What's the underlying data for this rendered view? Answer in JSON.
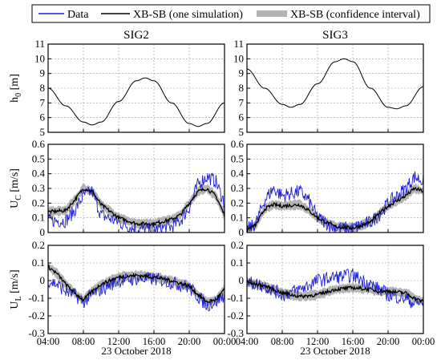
{
  "legend": {
    "entries": [
      {
        "label": "Data",
        "color": "#1f1fd6",
        "style": "line"
      },
      {
        "label": "XB-SB (one simulation)",
        "color": "#000000",
        "style": "line"
      },
      {
        "label": "XB-SB (confidence interval)",
        "color": "#b3b3b3",
        "style": "band"
      }
    ]
  },
  "columns": [
    "SIG2",
    "SIG3"
  ],
  "xaxis": {
    "ticks": [
      "04:00",
      "08:00",
      "12:00",
      "16:00",
      "20:00",
      "00:00"
    ],
    "label": "23 October 2018",
    "range_hours": [
      4,
      24
    ]
  },
  "chart_data": [
    {
      "type": "line",
      "panel": "h0-SIG2",
      "ylabel": "h0 [m]",
      "ylim": [
        5,
        11
      ],
      "yticks": [
        "5",
        "6",
        "7",
        "8",
        "9",
        "10",
        "11"
      ],
      "series": [
        {
          "name": "XB-SB (one simulation)",
          "x": [
            "04:00",
            "06:00",
            "08:00",
            "09:00",
            "10:00",
            "12:00",
            "14:00",
            "15:00",
            "16:00",
            "18:00",
            "20:00",
            "21:00",
            "22:00",
            "00:00"
          ],
          "values": [
            8.0,
            6.8,
            5.7,
            5.5,
            5.7,
            7.1,
            8.5,
            8.7,
            8.5,
            7.0,
            5.6,
            5.4,
            5.6,
            7.0
          ]
        }
      ]
    },
    {
      "type": "line",
      "panel": "h0-SIG3",
      "ylabel": "",
      "ylim": [
        5,
        11
      ],
      "yticks": [
        "5",
        "6",
        "7",
        "8",
        "9",
        "10",
        "11"
      ],
      "series": [
        {
          "name": "XB-SB (one simulation)",
          "x": [
            "04:00",
            "06:00",
            "08:00",
            "09:00",
            "10:00",
            "12:00",
            "14:00",
            "15:00",
            "16:00",
            "18:00",
            "20:00",
            "21:00",
            "22:00",
            "00:00"
          ],
          "values": [
            9.3,
            8.0,
            6.9,
            6.7,
            6.9,
            8.3,
            9.8,
            10.0,
            9.8,
            8.0,
            6.7,
            6.6,
            6.8,
            8.1
          ]
        }
      ]
    },
    {
      "type": "line",
      "panel": "Uc-SIG2",
      "ylabel": "UC [m/s]",
      "ylim": [
        0,
        0.6
      ],
      "yticks": [
        "0",
        "0.1",
        "0.2",
        "0.3",
        "0.4",
        "0.5",
        "0.6"
      ],
      "series": [
        {
          "name": "Data",
          "x": [
            "04:00",
            "06:00",
            "07:00",
            "08:00",
            "09:00",
            "10:00",
            "12:00",
            "14:00",
            "16:00",
            "18:00",
            "19:00",
            "20:00",
            "21:00",
            "22:00",
            "23:00",
            "00:00"
          ],
          "values": [
            0.08,
            0.08,
            0.15,
            0.25,
            0.28,
            0.12,
            0.07,
            0.02,
            0.02,
            0.04,
            0.08,
            0.17,
            0.33,
            0.38,
            0.35,
            0.2
          ]
        },
        {
          "name": "XB-SB (one simulation)",
          "x": [
            "04:00",
            "06:00",
            "07:00",
            "08:00",
            "09:00",
            "10:00",
            "12:00",
            "14:00",
            "16:00",
            "18:00",
            "19:00",
            "20:00",
            "21:00",
            "22:00",
            "23:00",
            "00:00"
          ],
          "values": [
            0.14,
            0.15,
            0.22,
            0.3,
            0.28,
            0.19,
            0.1,
            0.06,
            0.06,
            0.09,
            0.12,
            0.2,
            0.28,
            0.3,
            0.25,
            0.12
          ]
        },
        {
          "name": "XB-SB (confidence interval)",
          "x": [
            "04:00",
            "06:00",
            "07:00",
            "08:00",
            "09:00",
            "10:00",
            "12:00",
            "14:00",
            "16:00",
            "18:00",
            "19:00",
            "20:00",
            "21:00",
            "22:00",
            "23:00",
            "00:00"
          ],
          "values": [
            0.14,
            0.15,
            0.22,
            0.3,
            0.28,
            0.19,
            0.1,
            0.06,
            0.06,
            0.09,
            0.12,
            0.2,
            0.28,
            0.3,
            0.25,
            0.12
          ],
          "spread": 0.03
        }
      ]
    },
    {
      "type": "line",
      "panel": "Uc-SIG3",
      "ylabel": "",
      "ylim": [
        0,
        0.6
      ],
      "yticks": [
        "0",
        "0.1",
        "0.2",
        "0.3",
        "0.4",
        "0.5",
        "0.6"
      ],
      "series": [
        {
          "name": "Data",
          "x": [
            "04:00",
            "05:00",
            "06:00",
            "07:00",
            "08:00",
            "10:00",
            "11:00",
            "12:00",
            "14:00",
            "16:00",
            "18:00",
            "19:00",
            "20:00",
            "22:00",
            "23:00",
            "00:00"
          ],
          "values": [
            0.02,
            0.06,
            0.22,
            0.3,
            0.25,
            0.28,
            0.22,
            0.1,
            0.03,
            0.03,
            0.07,
            0.12,
            0.2,
            0.3,
            0.38,
            0.35
          ]
        },
        {
          "name": "XB-SB (one simulation)",
          "x": [
            "04:00",
            "05:00",
            "06:00",
            "07:00",
            "08:00",
            "10:00",
            "11:00",
            "12:00",
            "14:00",
            "16:00",
            "18:00",
            "19:00",
            "20:00",
            "22:00",
            "23:00",
            "00:00"
          ],
          "values": [
            0.02,
            0.05,
            0.16,
            0.19,
            0.18,
            0.19,
            0.15,
            0.1,
            0.04,
            0.03,
            0.07,
            0.13,
            0.18,
            0.25,
            0.3,
            0.28
          ]
        },
        {
          "name": "XB-SB (confidence interval)",
          "x": [
            "04:00",
            "05:00",
            "06:00",
            "07:00",
            "08:00",
            "10:00",
            "11:00",
            "12:00",
            "14:00",
            "16:00",
            "18:00",
            "19:00",
            "20:00",
            "22:00",
            "23:00",
            "00:00"
          ],
          "values": [
            0.02,
            0.05,
            0.16,
            0.19,
            0.18,
            0.19,
            0.15,
            0.1,
            0.04,
            0.03,
            0.07,
            0.13,
            0.18,
            0.25,
            0.3,
            0.28
          ],
          "spread": 0.03
        }
      ]
    },
    {
      "type": "line",
      "panel": "UL-SIG2",
      "ylabel": "UL [m/s]",
      "ylim": [
        -0.3,
        0.2
      ],
      "yticks": [
        "-0.3",
        "-0.2",
        "-0.1",
        "0",
        "0.1",
        "0.2"
      ],
      "series": [
        {
          "name": "Data",
          "x": [
            "04:00",
            "05:00",
            "06:00",
            "07:00",
            "08:00",
            "09:00",
            "10:00",
            "12:00",
            "14:00",
            "16:00",
            "18:00",
            "20:00",
            "21:00",
            "22:00",
            "23:00",
            "00:00"
          ],
          "values": [
            0.0,
            -0.02,
            -0.06,
            -0.08,
            -0.12,
            -0.08,
            -0.05,
            0.0,
            0.01,
            0.01,
            -0.01,
            -0.04,
            -0.09,
            -0.14,
            -0.12,
            -0.08
          ]
        },
        {
          "name": "XB-SB (one simulation)",
          "x": [
            "04:00",
            "05:00",
            "06:00",
            "07:00",
            "08:00",
            "09:00",
            "10:00",
            "12:00",
            "14:00",
            "16:00",
            "18:00",
            "20:00",
            "21:00",
            "22:00",
            "23:00",
            "00:00"
          ],
          "values": [
            0.08,
            0.04,
            -0.02,
            -0.07,
            -0.11,
            -0.06,
            -0.02,
            0.02,
            0.03,
            0.02,
            0.0,
            -0.03,
            -0.08,
            -0.12,
            -0.11,
            -0.05
          ]
        },
        {
          "name": "XB-SB (confidence interval)",
          "x": [
            "04:00",
            "05:00",
            "06:00",
            "07:00",
            "08:00",
            "09:00",
            "10:00",
            "12:00",
            "14:00",
            "16:00",
            "18:00",
            "20:00",
            "21:00",
            "22:00",
            "23:00",
            "00:00"
          ],
          "values": [
            0.08,
            0.04,
            -0.02,
            -0.07,
            -0.11,
            -0.06,
            -0.02,
            0.02,
            0.03,
            0.02,
            0.0,
            -0.03,
            -0.08,
            -0.12,
            -0.11,
            -0.05
          ],
          "spread": 0.025
        }
      ]
    },
    {
      "type": "line",
      "panel": "UL-SIG3",
      "ylabel": "",
      "ylim": [
        -0.3,
        0.2
      ],
      "yticks": [
        "-0.3",
        "-0.2",
        "-0.1",
        "0",
        "0.1",
        "0.2"
      ],
      "series": [
        {
          "name": "Data",
          "x": [
            "04:00",
            "06:00",
            "08:00",
            "10:00",
            "12:00",
            "14:00",
            "16:00",
            "18:00",
            "19:00",
            "20:00",
            "22:00",
            "23:00",
            "00:00"
          ],
          "values": [
            -0.01,
            -0.03,
            -0.08,
            -0.05,
            0.0,
            0.02,
            0.03,
            -0.02,
            -0.05,
            -0.08,
            -0.1,
            -0.13,
            -0.12
          ]
        },
        {
          "name": "XB-SB (one simulation)",
          "x": [
            "04:00",
            "06:00",
            "08:00",
            "10:00",
            "12:00",
            "14:00",
            "16:00",
            "18:00",
            "19:00",
            "20:00",
            "22:00",
            "23:00",
            "00:00"
          ],
          "values": [
            -0.01,
            -0.03,
            -0.07,
            -0.09,
            -0.08,
            -0.05,
            -0.04,
            -0.05,
            -0.06,
            -0.06,
            -0.07,
            -0.1,
            -0.12
          ]
        },
        {
          "name": "XB-SB (confidence interval)",
          "x": [
            "04:00",
            "06:00",
            "08:00",
            "10:00",
            "12:00",
            "14:00",
            "16:00",
            "18:00",
            "19:00",
            "20:00",
            "22:00",
            "23:00",
            "00:00"
          ],
          "values": [
            -0.01,
            -0.03,
            -0.07,
            -0.09,
            -0.08,
            -0.05,
            -0.04,
            -0.05,
            -0.06,
            -0.06,
            -0.07,
            -0.1,
            -0.12
          ],
          "spread": 0.025
        }
      ]
    }
  ]
}
